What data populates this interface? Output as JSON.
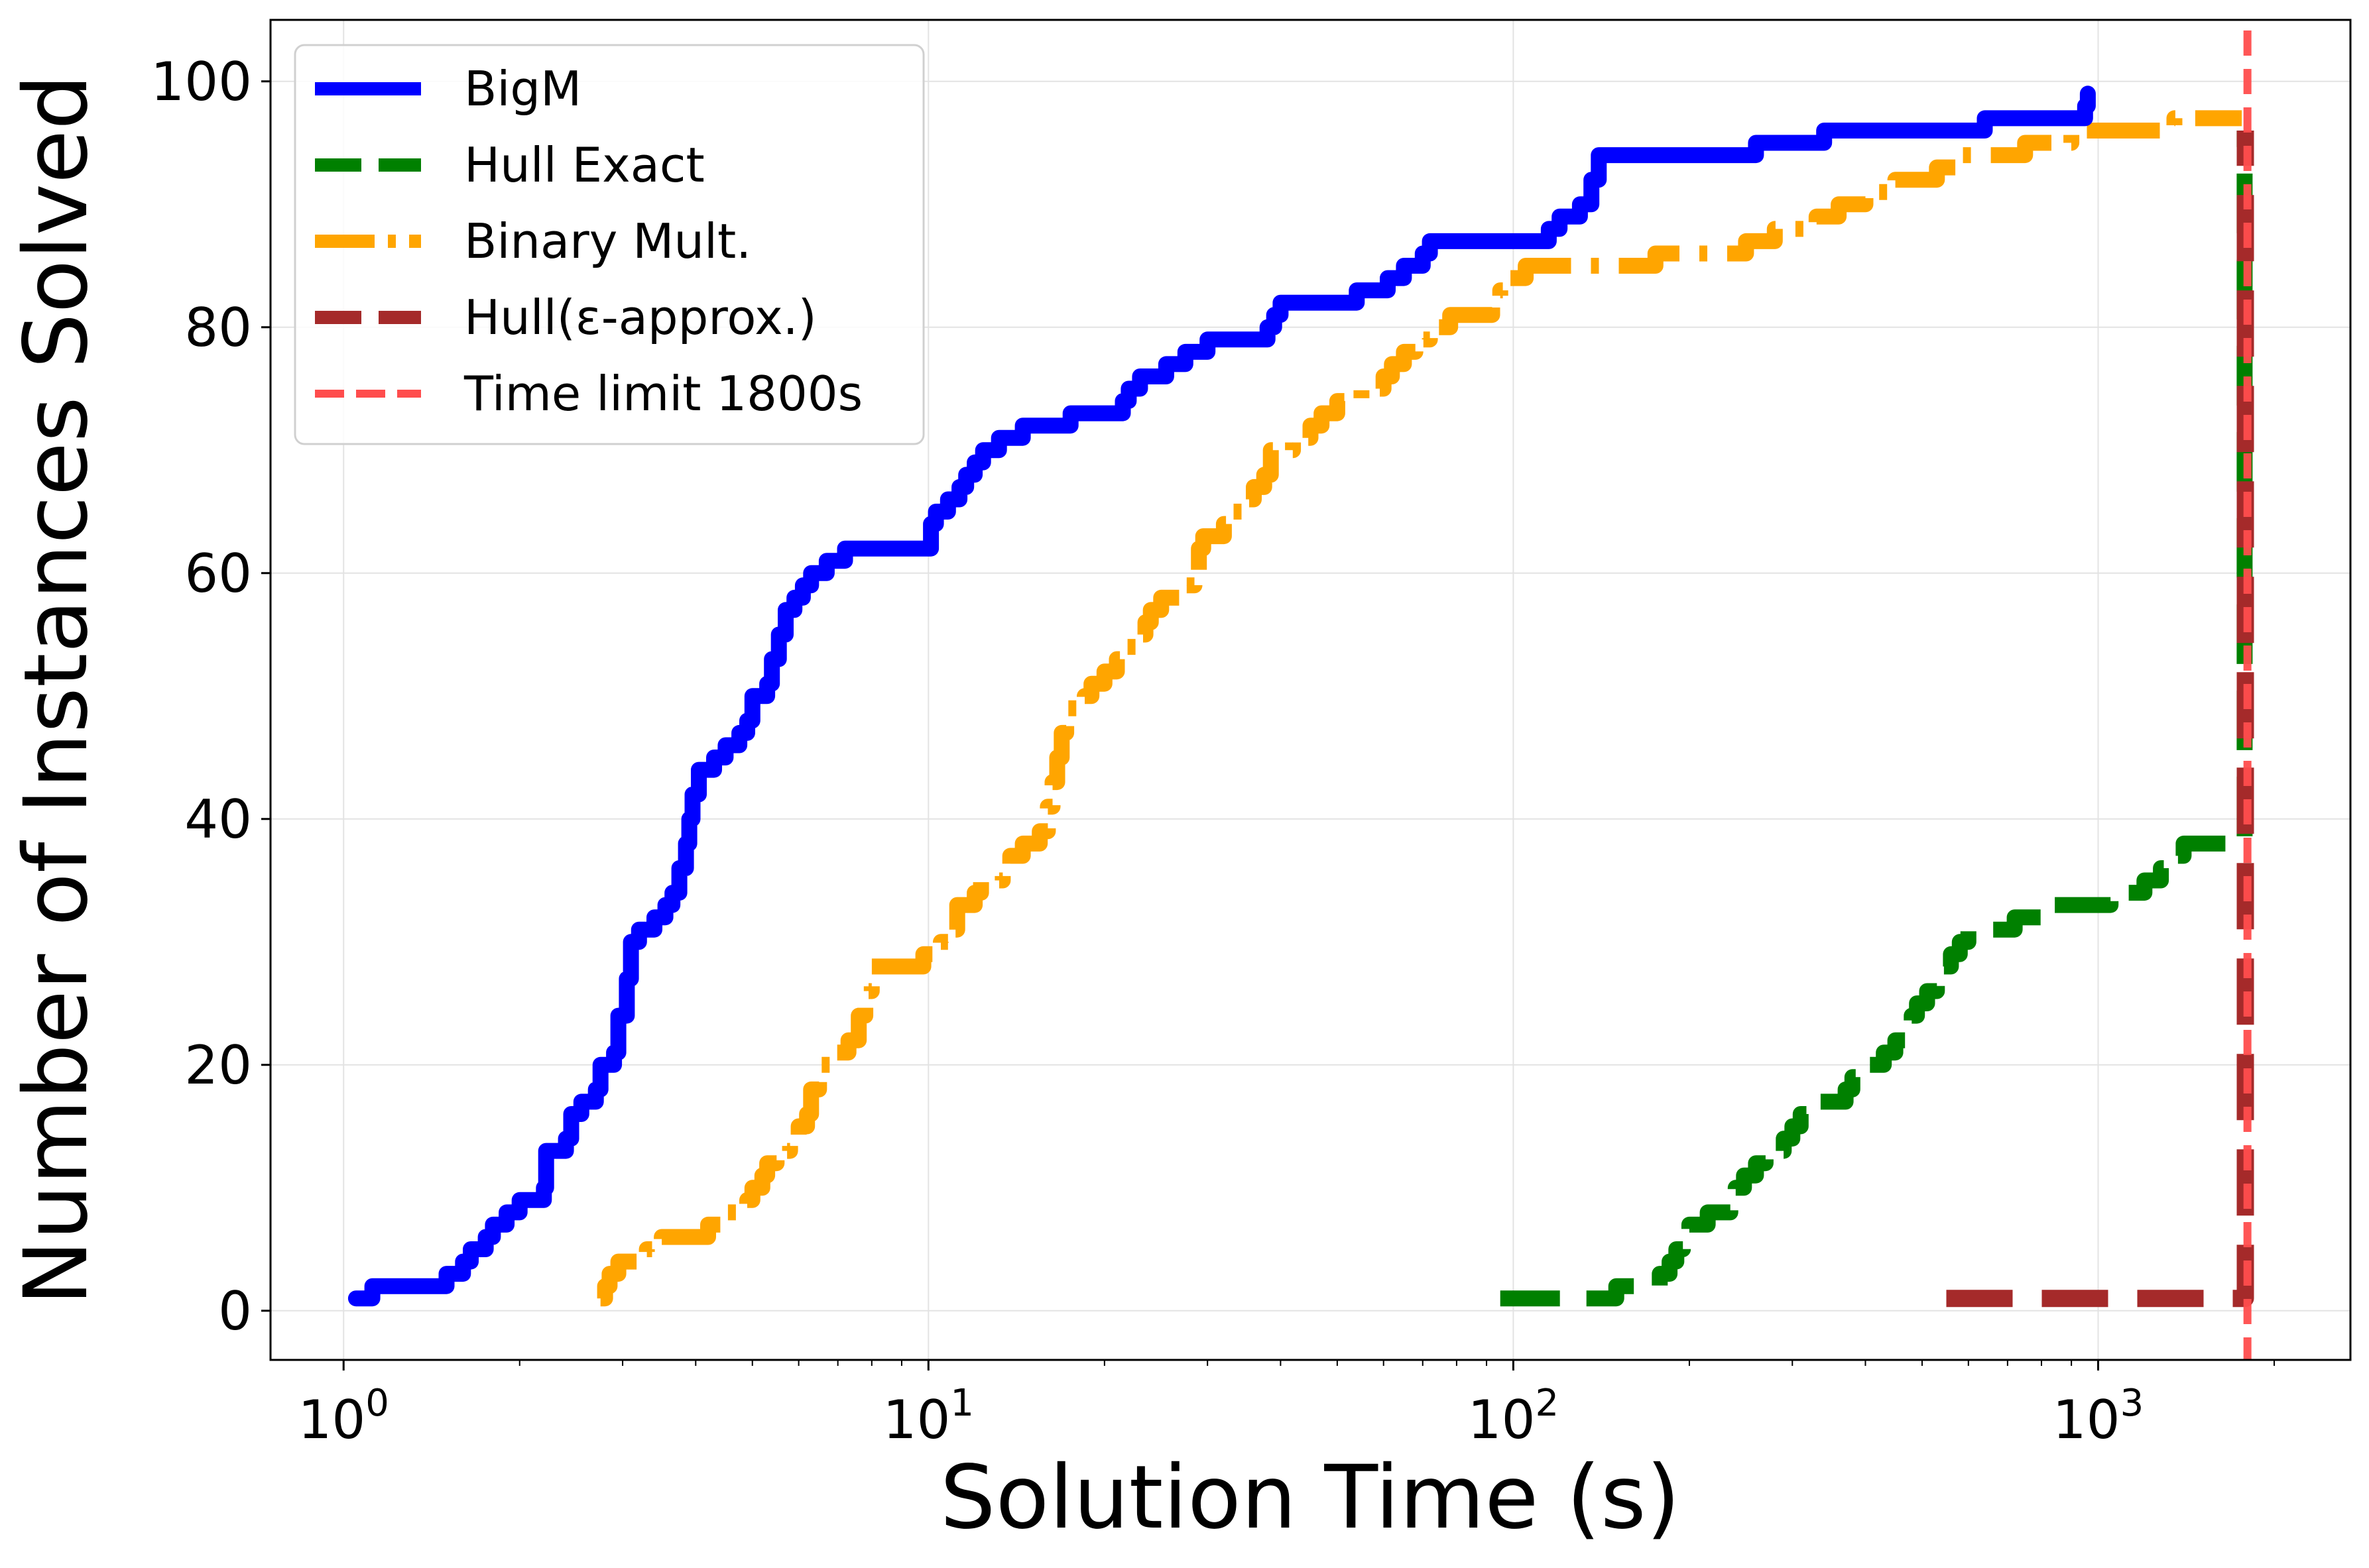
{
  "chart_data": {
    "type": "line",
    "xlabel": "Solution Time (s)",
    "ylabel": "Number of Instances Solved",
    "xscale": "log",
    "xlim": [
      0.75,
      2700
    ],
    "ylim": [
      -4,
      105
    ],
    "grid": true,
    "legend_placement": "top-left",
    "x_ticks": [
      {
        "value": 1,
        "base": "10",
        "exp": "0"
      },
      {
        "value": 10,
        "base": "10",
        "exp": "1"
      },
      {
        "value": 100,
        "base": "10",
        "exp": "2"
      },
      {
        "value": 1000,
        "base": "10",
        "exp": "3"
      }
    ],
    "y_ticks": [
      {
        "value": 0,
        "label": "0"
      },
      {
        "value": 20,
        "label": "20"
      },
      {
        "value": 40,
        "label": "40"
      },
      {
        "value": 60,
        "label": "60"
      },
      {
        "value": 80,
        "label": "80"
      },
      {
        "value": 100,
        "label": "100"
      }
    ],
    "series": [
      {
        "name": "BigM",
        "color": "#0000ff",
        "style": "solid",
        "points": [
          [
            1.05,
            1
          ],
          [
            1.12,
            2
          ],
          [
            1.5,
            3
          ],
          [
            1.6,
            4
          ],
          [
            1.65,
            5
          ],
          [
            1.75,
            6
          ],
          [
            1.8,
            7
          ],
          [
            1.9,
            8
          ],
          [
            2.0,
            9
          ],
          [
            2.2,
            10
          ],
          [
            2.22,
            13
          ],
          [
            2.4,
            14
          ],
          [
            2.45,
            16
          ],
          [
            2.55,
            17
          ],
          [
            2.7,
            18
          ],
          [
            2.75,
            20
          ],
          [
            2.9,
            21
          ],
          [
            2.95,
            24
          ],
          [
            3.05,
            27
          ],
          [
            3.1,
            30
          ],
          [
            3.2,
            31
          ],
          [
            3.4,
            32
          ],
          [
            3.55,
            33
          ],
          [
            3.65,
            34
          ],
          [
            3.75,
            36
          ],
          [
            3.85,
            38
          ],
          [
            3.9,
            40
          ],
          [
            3.95,
            42
          ],
          [
            4.05,
            44
          ],
          [
            4.3,
            45
          ],
          [
            4.5,
            46
          ],
          [
            4.75,
            47
          ],
          [
            4.9,
            48
          ],
          [
            5.0,
            50
          ],
          [
            5.3,
            51
          ],
          [
            5.4,
            53
          ],
          [
            5.55,
            55
          ],
          [
            5.7,
            57
          ],
          [
            5.9,
            58
          ],
          [
            6.1,
            59
          ],
          [
            6.3,
            60
          ],
          [
            6.7,
            61
          ],
          [
            7.2,
            62
          ],
          [
            9.9,
            62
          ],
          [
            10.1,
            64
          ],
          [
            10.3,
            65
          ],
          [
            10.8,
            66
          ],
          [
            11.3,
            67
          ],
          [
            11.6,
            68
          ],
          [
            12.0,
            69
          ],
          [
            12.4,
            70
          ],
          [
            13.2,
            71
          ],
          [
            14.5,
            72
          ],
          [
            17.0,
            72
          ],
          [
            17.5,
            73
          ],
          [
            21.0,
            73
          ],
          [
            21.5,
            74
          ],
          [
            22.0,
            75
          ],
          [
            23.0,
            76
          ],
          [
            25.5,
            77
          ],
          [
            27.5,
            78
          ],
          [
            30.0,
            79
          ],
          [
            37.0,
            79
          ],
          [
            38.0,
            80
          ],
          [
            39.0,
            81
          ],
          [
            40.0,
            82
          ],
          [
            52.0,
            82
          ],
          [
            54.0,
            83
          ],
          [
            61.0,
            84
          ],
          [
            65.0,
            85
          ],
          [
            70.0,
            86
          ],
          [
            72.0,
            87
          ],
          [
            100.0,
            87
          ],
          [
            115.0,
            88
          ],
          [
            120.0,
            89
          ],
          [
            130.0,
            90
          ],
          [
            136.0,
            92
          ],
          [
            140.0,
            94
          ],
          [
            250.0,
            94
          ],
          [
            260.0,
            95
          ],
          [
            330.0,
            95
          ],
          [
            340.0,
            96
          ],
          [
            620.0,
            96
          ],
          [
            640.0,
            97
          ],
          [
            920.0,
            97
          ],
          [
            950.0,
            98
          ],
          [
            960.0,
            99
          ]
        ]
      },
      {
        "name": "Hull Exact",
        "color": "#008000",
        "style": "dashed",
        "points": [
          [
            95,
            1
          ],
          [
            135,
            1
          ],
          [
            150,
            2
          ],
          [
            175,
            2
          ],
          [
            178,
            3
          ],
          [
            185,
            4
          ],
          [
            190,
            5
          ],
          [
            195,
            6
          ],
          [
            200,
            7
          ],
          [
            215,
            8
          ],
          [
            235,
            9
          ],
          [
            240,
            10
          ],
          [
            248,
            11
          ],
          [
            260,
            12
          ],
          [
            270,
            13
          ],
          [
            290,
            14
          ],
          [
            300,
            15
          ],
          [
            310,
            16
          ],
          [
            320,
            17
          ],
          [
            360,
            17
          ],
          [
            370,
            18
          ],
          [
            380,
            19
          ],
          [
            400,
            20
          ],
          [
            430,
            21
          ],
          [
            450,
            22
          ],
          [
            470,
            23
          ],
          [
            480,
            24
          ],
          [
            490,
            25
          ],
          [
            510,
            26
          ],
          [
            530,
            27
          ],
          [
            540,
            28
          ],
          [
            560,
            29
          ],
          [
            580,
            30
          ],
          [
            600,
            31
          ],
          [
            700,
            31
          ],
          [
            720,
            32
          ],
          [
            800,
            32
          ],
          [
            840,
            33
          ],
          [
            1000,
            33
          ],
          [
            1050,
            34
          ],
          [
            1200,
            35
          ],
          [
            1280,
            36
          ],
          [
            1350,
            37
          ],
          [
            1400,
            38
          ],
          [
            1750,
            38
          ],
          [
            1780,
            40
          ],
          [
            1780,
            96
          ]
        ]
      },
      {
        "name": "Binary Mult.",
        "color": "#ffa500",
        "style": "dashdot",
        "points": [
          [
            2.75,
            1
          ],
          [
            2.8,
            2
          ],
          [
            2.85,
            3
          ],
          [
            2.95,
            4
          ],
          [
            3.3,
            5
          ],
          [
            3.5,
            6
          ],
          [
            4.2,
            7
          ],
          [
            4.5,
            8
          ],
          [
            4.9,
            9
          ],
          [
            5.0,
            10
          ],
          [
            5.2,
            11
          ],
          [
            5.3,
            12
          ],
          [
            5.5,
            13
          ],
          [
            5.8,
            14
          ],
          [
            6.0,
            15
          ],
          [
            6.2,
            16
          ],
          [
            6.3,
            18
          ],
          [
            6.5,
            20
          ],
          [
            6.9,
            21
          ],
          [
            7.3,
            22
          ],
          [
            7.6,
            24
          ],
          [
            7.8,
            26
          ],
          [
            8.0,
            28
          ],
          [
            9.5,
            28
          ],
          [
            9.8,
            29
          ],
          [
            10.5,
            30
          ],
          [
            11.0,
            31
          ],
          [
            11.2,
            33
          ],
          [
            12.0,
            34
          ],
          [
            12.3,
            35
          ],
          [
            13.4,
            36
          ],
          [
            13.8,
            37
          ],
          [
            14.5,
            38
          ],
          [
            15.5,
            39
          ],
          [
            16.0,
            41
          ],
          [
            16.3,
            43
          ],
          [
            16.6,
            45
          ],
          [
            16.9,
            47
          ],
          [
            17.2,
            49
          ],
          [
            18.5,
            50
          ],
          [
            19.0,
            51
          ],
          [
            20.0,
            52
          ],
          [
            21.0,
            53
          ],
          [
            21.5,
            54
          ],
          [
            23.0,
            55
          ],
          [
            23.5,
            56
          ],
          [
            24.0,
            57
          ],
          [
            25.0,
            58
          ],
          [
            27.0,
            59
          ],
          [
            28.5,
            60
          ],
          [
            29.0,
            62
          ],
          [
            29.5,
            63
          ],
          [
            32.0,
            64
          ],
          [
            33.0,
            65
          ],
          [
            35.0,
            66
          ],
          [
            36.0,
            67
          ],
          [
            37.5,
            68
          ],
          [
            38.5,
            70
          ],
          [
            42.0,
            71
          ],
          [
            45.0,
            72
          ],
          [
            47.0,
            73
          ],
          [
            50.0,
            74
          ],
          [
            55.0,
            75
          ],
          [
            60.0,
            76
          ],
          [
            62.0,
            77
          ],
          [
            65.0,
            78
          ],
          [
            68.0,
            79
          ],
          [
            72.0,
            80
          ],
          [
            78.0,
            81
          ],
          [
            88.0,
            81
          ],
          [
            92.0,
            82
          ],
          [
            95.0,
            83
          ],
          [
            98.0,
            84
          ],
          [
            105.0,
            85
          ],
          [
            170.0,
            85
          ],
          [
            175.0,
            86
          ],
          [
            240.0,
            86
          ],
          [
            250.0,
            87
          ],
          [
            280.0,
            88
          ],
          [
            330.0,
            89
          ],
          [
            360.0,
            90
          ],
          [
            400.0,
            91
          ],
          [
            450.0,
            92
          ],
          [
            530.0,
            93
          ],
          [
            580.0,
            94
          ],
          [
            720.0,
            94
          ],
          [
            750.0,
            95
          ],
          [
            900.0,
            96
          ],
          [
            1300.0,
            96
          ],
          [
            1350.0,
            97
          ],
          [
            1760.0,
            97
          ]
        ]
      },
      {
        "name": "Hull(ε-approx.)",
        "color": "#a52a2a",
        "style": "dashed-dense",
        "points": [
          [
            550,
            1
          ],
          [
            1780,
            1
          ],
          [
            1785,
            2
          ],
          [
            1785,
            96
          ]
        ]
      },
      {
        "name": "Time limit 1800s",
        "color": "#ff4d4d",
        "style": "vline",
        "x": 1800
      }
    ]
  }
}
